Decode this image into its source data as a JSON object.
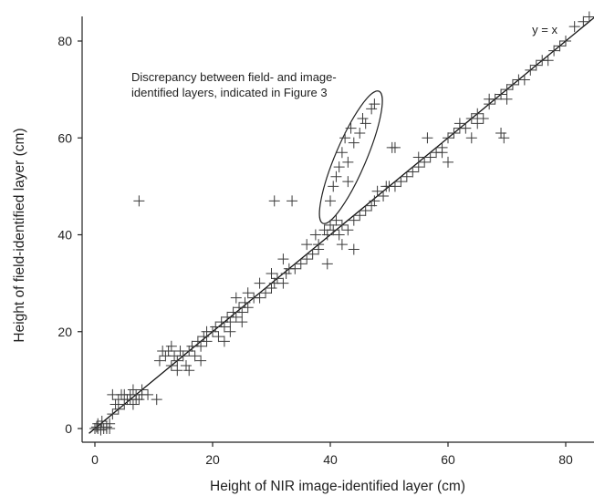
{
  "chart_data": {
    "type": "scatter",
    "xlabel": "Height of NIR image-identified layer (cm)",
    "ylabel": "Height of field-identified layer (cm)",
    "xlim": [
      -2,
      85
    ],
    "ylim": [
      -2,
      86
    ],
    "xticks": [
      0,
      20,
      40,
      60,
      80
    ],
    "yticks": [
      0,
      20,
      40,
      60,
      80
    ],
    "grid": false,
    "marker": "plus",
    "reference_line": {
      "label": "y = x",
      "from": [
        -1,
        -1
      ],
      "to": [
        85,
        85
      ]
    },
    "annotation": {
      "line1": "Discrepancy between field- and image-",
      "line2": "identified layers, indicated in Figure 3",
      "ellipse_center": [
        43.5,
        56
      ],
      "ellipse_x_span": [
        38.5,
        48
      ],
      "ellipse_y_span": [
        43,
        69
      ]
    },
    "points": [
      [
        0,
        0
      ],
      [
        0.5,
        0
      ],
      [
        1,
        0
      ],
      [
        1.5,
        0
      ],
      [
        2,
        0
      ],
      [
        2.5,
        0
      ],
      [
        1,
        -0.3
      ],
      [
        2,
        0.3
      ],
      [
        0.3,
        0.3
      ],
      [
        0.5,
        1
      ],
      [
        1.2,
        1.5
      ],
      [
        2.5,
        1
      ],
      [
        3,
        3
      ],
      [
        4,
        4
      ],
      [
        3.5,
        5
      ],
      [
        4,
        6
      ],
      [
        4.5,
        7
      ],
      [
        5,
        5
      ],
      [
        5.5,
        6
      ],
      [
        6,
        6
      ],
      [
        6,
        7
      ],
      [
        6.5,
        5
      ],
      [
        7,
        6
      ],
      [
        7,
        7
      ],
      [
        7.5,
        6
      ],
      [
        8,
        7
      ],
      [
        8,
        8
      ],
      [
        5,
        7
      ],
      [
        6.5,
        8
      ],
      [
        9,
        7
      ],
      [
        10.5,
        6
      ],
      [
        3,
        7
      ],
      [
        7.5,
        47
      ],
      [
        11,
        14
      ],
      [
        11.5,
        16
      ],
      [
        12,
        15
      ],
      [
        12.5,
        16
      ],
      [
        13,
        13
      ],
      [
        13.5,
        15
      ],
      [
        14,
        14
      ],
      [
        14.5,
        16
      ],
      [
        15,
        15
      ],
      [
        15.5,
        13
      ],
      [
        16,
        16
      ],
      [
        16.5,
        17
      ],
      [
        17,
        15
      ],
      [
        17.5,
        18
      ],
      [
        18,
        17
      ],
      [
        18.5,
        19
      ],
      [
        19,
        18
      ],
      [
        19,
        20
      ],
      [
        14,
        12
      ],
      [
        16,
        12
      ],
      [
        18,
        14
      ],
      [
        13,
        17
      ],
      [
        20,
        20
      ],
      [
        20.5,
        21
      ],
      [
        21,
        19
      ],
      [
        21.5,
        22
      ],
      [
        22,
        21
      ],
      [
        22.5,
        23
      ],
      [
        23,
        22
      ],
      [
        23.5,
        24
      ],
      [
        24,
        23
      ],
      [
        24.5,
        25
      ],
      [
        25,
        24
      ],
      [
        25.5,
        26
      ],
      [
        26,
        25
      ],
      [
        27,
        27
      ],
      [
        28,
        27
      ],
      [
        29,
        28
      ],
      [
        30,
        29
      ],
      [
        30.5,
        30
      ],
      [
        31,
        31
      ],
      [
        32,
        30
      ],
      [
        32.5,
        32
      ],
      [
        33,
        33
      ],
      [
        34,
        33
      ],
      [
        35,
        34
      ],
      [
        36,
        35
      ],
      [
        37,
        36
      ],
      [
        38,
        38
      ],
      [
        22,
        18
      ],
      [
        24,
        27
      ],
      [
        26,
        28
      ],
      [
        28,
        30
      ],
      [
        30,
        32
      ],
      [
        32,
        35
      ],
      [
        23,
        20
      ],
      [
        25,
        22
      ],
      [
        30.5,
        47
      ],
      [
        33.5,
        47
      ],
      [
        39,
        41
      ],
      [
        39.5,
        40
      ],
      [
        40,
        42
      ],
      [
        40.5,
        41
      ],
      [
        41,
        43
      ],
      [
        41.5,
        40
      ],
      [
        42,
        42
      ],
      [
        43,
        41
      ],
      [
        44,
        43
      ],
      [
        45,
        44
      ],
      [
        46,
        45
      ],
      [
        47,
        46
      ],
      [
        47.5,
        47
      ],
      [
        48,
        49
      ],
      [
        49,
        48
      ],
      [
        49.5,
        50
      ],
      [
        50,
        50
      ],
      [
        51,
        50
      ],
      [
        52,
        51
      ],
      [
        53,
        52
      ],
      [
        54,
        53
      ],
      [
        55,
        54
      ],
      [
        56,
        55
      ],
      [
        57,
        56
      ],
      [
        58,
        57
      ],
      [
        59,
        58
      ],
      [
        42,
        38
      ],
      [
        44,
        37
      ],
      [
        39.5,
        34
      ],
      [
        38,
        37
      ],
      [
        36,
        38
      ],
      [
        37.5,
        40
      ],
      [
        40,
        47
      ],
      [
        40.5,
        50
      ],
      [
        41,
        52
      ],
      [
        41.5,
        54
      ],
      [
        42,
        57
      ],
      [
        42.5,
        60
      ],
      [
        43,
        55
      ],
      [
        43.5,
        62
      ],
      [
        44,
        59
      ],
      [
        45,
        61
      ],
      [
        46,
        63
      ],
      [
        47,
        66
      ],
      [
        47.5,
        67
      ],
      [
        45.5,
        64
      ],
      [
        43,
        51
      ],
      [
        50.5,
        58
      ],
      [
        51,
        58
      ],
      [
        56.5,
        60
      ],
      [
        60,
        55
      ],
      [
        64,
        60
      ],
      [
        69,
        61
      ],
      [
        69.5,
        60
      ],
      [
        59,
        57
      ],
      [
        55,
        56
      ],
      [
        60,
        60
      ],
      [
        61,
        61
      ],
      [
        62,
        62
      ],
      [
        63,
        62
      ],
      [
        64,
        64
      ],
      [
        65,
        65
      ],
      [
        66,
        64
      ],
      [
        67,
        67
      ],
      [
        68,
        68
      ],
      [
        69,
        69
      ],
      [
        70,
        70
      ],
      [
        71,
        71
      ],
      [
        72,
        72
      ],
      [
        73,
        72
      ],
      [
        74,
        74
      ],
      [
        75,
        75
      ],
      [
        76,
        76
      ],
      [
        77,
        76
      ],
      [
        78,
        78
      ],
      [
        79,
        79
      ],
      [
        80,
        80
      ],
      [
        81.5,
        83
      ],
      [
        83,
        84
      ],
      [
        84,
        85
      ],
      [
        62,
        63
      ],
      [
        65,
        63
      ],
      [
        67,
        68
      ],
      [
        70,
        68
      ]
    ]
  }
}
